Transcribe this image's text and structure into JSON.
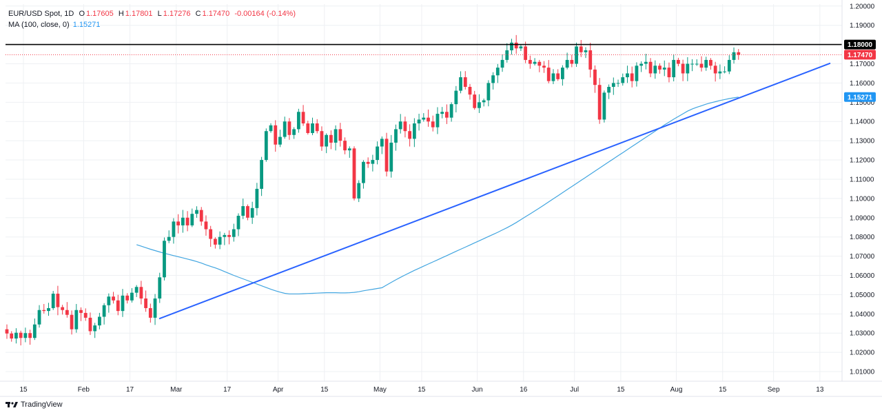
{
  "legend": {
    "symbol": "EUR/USD Spot, 1D",
    "open_label": "O",
    "open": "1.17605",
    "high_label": "H",
    "high": "1.17801",
    "low_label": "L",
    "low": "1.17276",
    "close_label": "C",
    "close": "1.17470",
    "change": "-0.00164 (-0.14%)",
    "ma_label": "MA (100, close, 0)",
    "ma_value": "1.15271"
  },
  "branding": {
    "logo_text": "TradingView"
  },
  "colors": {
    "up": "#089981",
    "down": "#f23645",
    "ma": "#41a5e0",
    "trendline": "#2962ff",
    "resistance": "#000000",
    "grid": "#eef0f3"
  },
  "price_tags": [
    {
      "label": "1.18000",
      "price": 1.18,
      "color": "#000000"
    },
    {
      "label": "1.17470",
      "price": 1.1747,
      "color": "#f23645"
    },
    {
      "label": "1.15271",
      "price": 1.15271,
      "color": "#2196f3"
    }
  ],
  "chart_data": {
    "type": "candlestick",
    "ylim": [
      1.005,
      1.201
    ],
    "y_ticks": [
      "1.01000",
      "1.02000",
      "1.03000",
      "1.04000",
      "1.05000",
      "1.06000",
      "1.07000",
      "1.08000",
      "1.09000",
      "1.10000",
      "1.11000",
      "1.12000",
      "1.13000",
      "1.14000",
      "1.15000",
      "1.16000",
      "1.17000",
      "1.18000",
      "1.19000",
      "1.20000"
    ],
    "y_tick_values": [
      1.01,
      1.02,
      1.03,
      1.04,
      1.05,
      1.06,
      1.07,
      1.08,
      1.09,
      1.1,
      1.11,
      1.12,
      1.13,
      1.14,
      1.15,
      1.16,
      1.17,
      1.18,
      1.19,
      1.2
    ],
    "x_ticks": [
      {
        "label": "15",
        "bar": 0
      },
      {
        "label": "Feb",
        "bar": 13
      },
      {
        "label": "17",
        "bar": 23
      },
      {
        "label": "Mar",
        "bar": 33
      },
      {
        "label": "17",
        "bar": 44
      },
      {
        "label": "Apr",
        "bar": 55
      },
      {
        "label": "15",
        "bar": 65
      },
      {
        "label": "May",
        "bar": 77
      },
      {
        "label": "15",
        "bar": 86
      },
      {
        "label": "Jun",
        "bar": 98
      },
      {
        "label": "16",
        "bar": 108
      },
      {
        "label": "Jul",
        "bar": 119
      },
      {
        "label": "15",
        "bar": 129
      },
      {
        "label": "Aug",
        "bar": 141
      },
      {
        "label": "15",
        "bar": 151
      },
      {
        "label": "Sep",
        "bar": 162
      },
      {
        "label": "13",
        "bar": 172
      }
    ],
    "closes": [
      1.0298,
      1.0272,
      1.0302,
      1.0275,
      1.03,
      1.0275,
      1.0345,
      1.042,
      1.0415,
      1.043,
      1.0505,
      1.0435,
      1.042,
      1.0395,
      1.032,
      1.042,
      1.0405,
      1.038,
      1.031,
      1.034,
      1.0385,
      1.0445,
      1.049,
      1.047,
      1.0415,
      1.0495,
      1.047,
      1.051,
      1.054,
      1.048,
      1.043,
      1.038,
      1.048,
      1.059,
      1.078,
      1.08,
      1.088,
      1.086,
      1.09,
      1.086,
      1.092,
      1.094,
      1.088,
      1.084,
      1.079,
      1.076,
      1.08,
      1.081,
      1.08,
      1.084,
      1.091,
      1.096,
      1.09,
      1.095,
      1.105,
      1.12,
      1.135,
      1.138,
      1.128,
      1.132,
      1.14,
      1.133,
      1.136,
      1.145,
      1.139,
      1.134,
      1.139,
      1.135,
      1.127,
      1.133,
      1.129,
      1.136,
      1.13,
      1.125,
      1.126,
      1.1,
      1.108,
      1.119,
      1.118,
      1.12,
      1.127,
      1.131,
      1.114,
      1.129,
      1.136,
      1.14,
      1.135,
      1.131,
      1.139,
      1.141,
      1.142,
      1.14,
      1.137,
      1.144,
      1.145,
      1.142,
      1.149,
      1.156,
      1.163,
      1.158,
      1.154,
      1.147,
      1.15,
      1.151,
      1.16,
      1.164,
      1.168,
      1.172,
      1.177,
      1.181,
      1.178,
      1.179,
      1.172,
      1.17,
      1.171,
      1.169,
      1.168,
      1.161,
      1.165,
      1.162,
      1.168,
      1.172,
      1.17,
      1.179,
      1.176,
      1.177,
      1.167,
      1.159,
      1.141,
      1.155,
      1.158,
      1.16,
      1.16,
      1.163,
      1.165,
      1.161,
      1.169,
      1.17,
      1.171,
      1.165,
      1.169,
      1.167,
      1.168,
      1.163,
      1.172,
      1.17,
      1.165,
      1.17,
      1.17,
      1.17,
      1.168,
      1.172,
      1.169,
      1.165,
      1.166,
      1.166,
      1.172,
      1.176,
      1.1747
    ],
    "ma_100": [
      1.076,
      1.0752,
      1.0744,
      1.0736,
      1.0729,
      1.0722,
      1.0715,
      1.0709,
      1.0703,
      1.0697,
      1.0691,
      1.0685,
      1.0679,
      1.0672,
      1.0664,
      1.0655,
      1.0647,
      1.0639,
      1.063,
      1.062,
      1.061,
      1.06,
      1.0591,
      1.0582,
      1.0573,
      1.0564,
      1.0555,
      1.0546,
      1.0537,
      1.0528,
      1.052,
      1.0513,
      1.0507,
      1.0504,
      1.0504,
      1.0504,
      1.0505,
      1.0506,
      1.0507,
      1.0508,
      1.0509,
      1.051,
      1.051,
      1.051,
      1.0509,
      1.0509,
      1.051,
      1.0512,
      1.0515,
      1.052,
      1.0524,
      1.0528,
      1.0532,
      1.0536,
      1.055,
      1.0564,
      1.0577,
      1.059,
      1.0602,
      1.0614,
      1.0626,
      1.0637,
      1.0648,
      1.0659,
      1.067,
      1.0681,
      1.0692,
      1.0703,
      1.0714,
      1.0725,
      1.0736,
      1.0747,
      1.0758,
      1.0769,
      1.078,
      1.0791,
      1.0802,
      1.0813,
      1.0824,
      1.0836,
      1.0848,
      1.0861,
      1.0875,
      1.089,
      1.0905,
      1.092,
      1.0935,
      1.095,
      1.0966,
      1.0982,
      1.0998,
      1.1014,
      1.103,
      1.1046,
      1.1062,
      1.1078,
      1.1094,
      1.111,
      1.1126,
      1.1142,
      1.1158,
      1.1174,
      1.119,
      1.1206,
      1.1222,
      1.1238,
      1.1254,
      1.127,
      1.1286,
      1.1302,
      1.1318,
      1.1334,
      1.135,
      1.1366,
      1.1382,
      1.1397,
      1.1412,
      1.1426,
      1.144,
      1.1454,
      1.1465,
      1.1474,
      1.1482,
      1.149,
      1.1497,
      1.1503,
      1.1509,
      1.1514,
      1.1519,
      1.1523,
      1.1527
    ]
  }
}
